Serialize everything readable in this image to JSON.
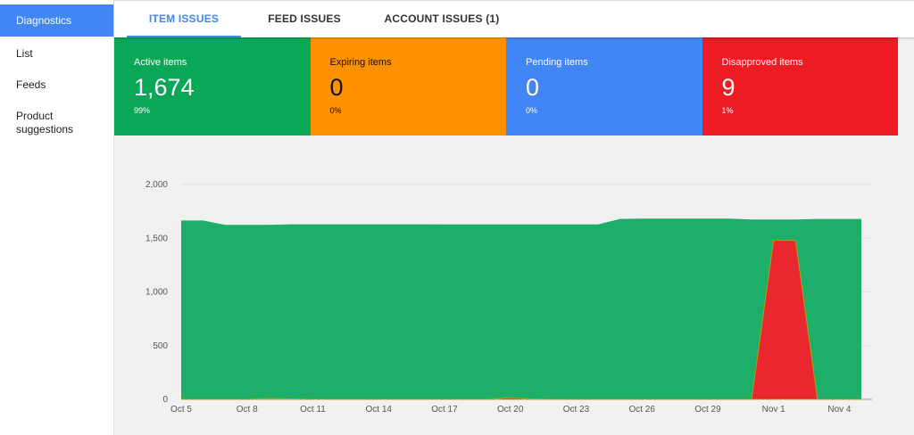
{
  "sidebar": {
    "items": [
      {
        "label": "Diagnostics",
        "active": true
      },
      {
        "label": "List"
      },
      {
        "label": "Feeds"
      },
      {
        "label_line1": "Product",
        "label_line2": "suggestions"
      }
    ]
  },
  "tabs": [
    {
      "label": "ITEM ISSUES",
      "active": true
    },
    {
      "label": "FEED ISSUES"
    },
    {
      "label": "ACCOUNT ISSUES (1)"
    }
  ],
  "cards": [
    {
      "label": "Active items",
      "value": "1,674",
      "percent": "99%",
      "color": "#0aa757"
    },
    {
      "label": "Expiring items",
      "value": "0",
      "percent": "0%",
      "color": "#ff9100"
    },
    {
      "label": "Pending items",
      "value": "0",
      "percent": "0%",
      "color": "#4285f4"
    },
    {
      "label": "Disapproved items",
      "value": "9",
      "percent": "1%",
      "color": "#ed1c24"
    }
  ],
  "chart_data": {
    "type": "area",
    "x_tick_labels": [
      "Oct 5",
      "Oct 8",
      "Oct 11",
      "Oct 14",
      "Oct 17",
      "Oct 20",
      "Oct 23",
      "Oct 26",
      "Oct 29",
      "Nov 1",
      "Nov 4"
    ],
    "y_tick_labels": [
      "0",
      "500",
      "1,000",
      "1,500",
      "2,000"
    ],
    "ylim": [
      0,
      2000
    ],
    "grid": true,
    "series": [
      {
        "color": "#1daf6a",
        "points": [
          [
            "Oct 5",
            1665
          ],
          [
            "Oct 6",
            1665
          ],
          [
            "Oct 7",
            1625
          ],
          [
            "Oct 8",
            1625
          ],
          [
            "Oct 9",
            1625
          ],
          [
            "Oct 10",
            1630
          ],
          [
            "Oct 11",
            1630
          ],
          [
            "Oct 12",
            1630
          ],
          [
            "Oct 13",
            1630
          ],
          [
            "Oct 14",
            1630
          ],
          [
            "Oct 15",
            1630
          ],
          [
            "Oct 16",
            1630
          ],
          [
            "Oct 17",
            1628
          ],
          [
            "Oct 18",
            1628
          ],
          [
            "Oct 19",
            1628
          ],
          [
            "Oct 20",
            1628
          ],
          [
            "Oct 21",
            1628
          ],
          [
            "Oct 22",
            1628
          ],
          [
            "Oct 23",
            1628
          ],
          [
            "Oct 24",
            1628
          ],
          [
            "Oct 25",
            1680
          ],
          [
            "Oct 26",
            1682
          ],
          [
            "Oct 27",
            1682
          ],
          [
            "Oct 28",
            1682
          ],
          [
            "Oct 29",
            1682
          ],
          [
            "Oct 30",
            1682
          ],
          [
            "Oct 31",
            1675
          ],
          [
            "Nov 1",
            1675
          ],
          [
            "Nov 2",
            1675
          ],
          [
            "Nov 3",
            1680
          ],
          [
            "Nov 4",
            1680
          ],
          [
            "Nov 5",
            1680
          ]
        ]
      },
      {
        "color": "#e8282e",
        "points": [
          [
            "Oct 5",
            0
          ],
          [
            "Oct 6",
            0
          ],
          [
            "Oct 7",
            0
          ],
          [
            "Oct 8",
            0
          ],
          [
            "Oct 9",
            8
          ],
          [
            "Oct 10",
            4
          ],
          [
            "Oct 11",
            0
          ],
          [
            "Oct 12",
            0
          ],
          [
            "Oct 13",
            0
          ],
          [
            "Oct 14",
            0
          ],
          [
            "Oct 15",
            0
          ],
          [
            "Oct 16",
            0
          ],
          [
            "Oct 17",
            0
          ],
          [
            "Oct 18",
            0
          ],
          [
            "Oct 19",
            0
          ],
          [
            "Oct 20",
            15
          ],
          [
            "Oct 21",
            3
          ],
          [
            "Oct 22",
            0
          ],
          [
            "Oct 23",
            0
          ],
          [
            "Oct 24",
            0
          ],
          [
            "Oct 25",
            0
          ],
          [
            "Oct 26",
            0
          ],
          [
            "Oct 27",
            0
          ],
          [
            "Oct 28",
            0
          ],
          [
            "Oct 29",
            0
          ],
          [
            "Oct 30",
            0
          ],
          [
            "Oct 31",
            0
          ],
          [
            "Nov 1",
            1480
          ],
          [
            "Nov 2",
            1480
          ],
          [
            "Nov 3",
            0
          ],
          [
            "Nov 4",
            0
          ],
          [
            "Nov 5",
            0
          ]
        ]
      }
    ]
  }
}
